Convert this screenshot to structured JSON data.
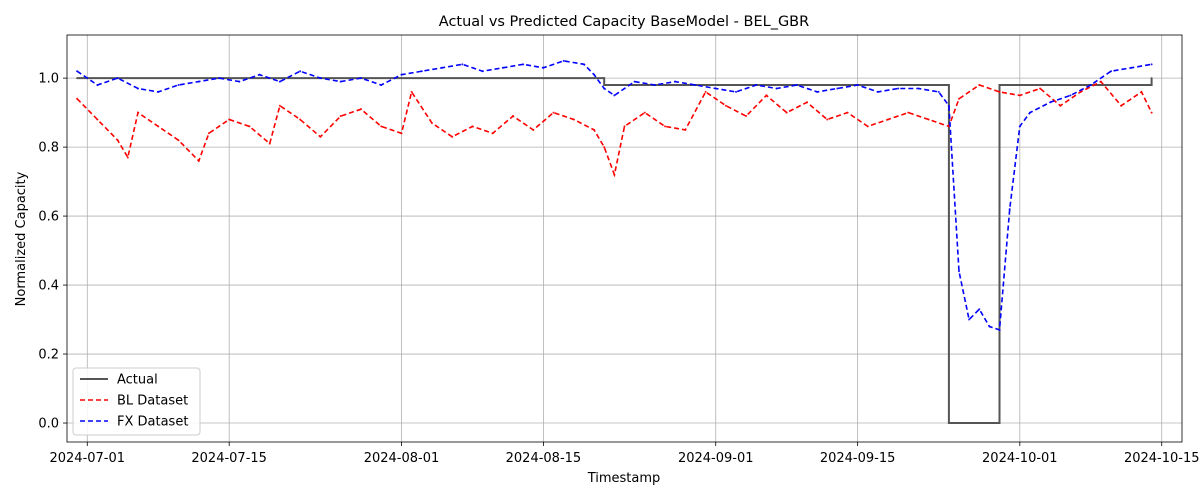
{
  "chart_data": {
    "type": "line",
    "title": "Actual vs Predicted Capacity BaseModel - BEL_GBR",
    "xlabel": "Timestamp",
    "ylabel": "Normalized Capacity",
    "x_type": "date",
    "xlim": [
      "2024-06-29",
      "2024-10-17"
    ],
    "ylim": [
      -0.055,
      1.125
    ],
    "x_ticks": [
      "2024-07-01",
      "2024-07-15",
      "2024-08-01",
      "2024-08-15",
      "2024-09-01",
      "2024-09-15",
      "2024-10-01",
      "2024-10-15"
    ],
    "y_ticks": [
      0.0,
      0.2,
      0.4,
      0.6,
      0.8,
      1.0
    ],
    "y_tick_labels": [
      "0.0",
      "0.2",
      "0.4",
      "0.6",
      "0.8",
      "1.0"
    ],
    "grid": true,
    "legend_position": "lower-left",
    "series": [
      {
        "name": "Actual",
        "color": "#555555",
        "style": "solid",
        "x": [
          "2024-06-30",
          "2024-08-20",
          "2024-08-21",
          "2024-09-24",
          "2024-09-24",
          "2024-09-29",
          "2024-09-29",
          "2024-10-14"
        ],
        "y": [
          1.0,
          1.0,
          0.98,
          0.98,
          0.0,
          0.0,
          0.98,
          1.0
        ]
      },
      {
        "name": "BL Dataset",
        "color": "#ff0000",
        "style": "dashed",
        "x": [
          "2024-06-30",
          "2024-07-02",
          "2024-07-04",
          "2024-07-05",
          "2024-07-06",
          "2024-07-08",
          "2024-07-10",
          "2024-07-12",
          "2024-07-13",
          "2024-07-15",
          "2024-07-17",
          "2024-07-19",
          "2024-07-20",
          "2024-07-22",
          "2024-07-24",
          "2024-07-26",
          "2024-07-28",
          "2024-07-30",
          "2024-08-01",
          "2024-08-02",
          "2024-08-04",
          "2024-08-06",
          "2024-08-08",
          "2024-08-10",
          "2024-08-12",
          "2024-08-14",
          "2024-08-16",
          "2024-08-18",
          "2024-08-20",
          "2024-08-21",
          "2024-08-22",
          "2024-08-23",
          "2024-08-25",
          "2024-08-27",
          "2024-08-29",
          "2024-08-31",
          "2024-09-02",
          "2024-09-04",
          "2024-09-06",
          "2024-09-08",
          "2024-09-10",
          "2024-09-12",
          "2024-09-14",
          "2024-09-16",
          "2024-09-18",
          "2024-09-20",
          "2024-09-22",
          "2024-09-24",
          "2024-09-25",
          "2024-09-27",
          "2024-09-29",
          "2024-10-01",
          "2024-10-03",
          "2024-10-05",
          "2024-10-07",
          "2024-10-09",
          "2024-10-11",
          "2024-10-13",
          "2024-10-14"
        ],
        "y": [
          0.94,
          0.88,
          0.82,
          0.77,
          0.9,
          0.86,
          0.82,
          0.76,
          0.84,
          0.88,
          0.86,
          0.81,
          0.92,
          0.88,
          0.83,
          0.89,
          0.91,
          0.86,
          0.84,
          0.96,
          0.87,
          0.83,
          0.86,
          0.84,
          0.89,
          0.85,
          0.9,
          0.88,
          0.85,
          0.8,
          0.72,
          0.86,
          0.9,
          0.86,
          0.85,
          0.96,
          0.92,
          0.89,
          0.95,
          0.9,
          0.93,
          0.88,
          0.9,
          0.86,
          0.88,
          0.9,
          0.88,
          0.86,
          0.94,
          0.98,
          0.96,
          0.95,
          0.97,
          0.92,
          0.96,
          0.99,
          0.92,
          0.96,
          0.9
        ]
      },
      {
        "name": "FX Dataset",
        "color": "#0000ff",
        "style": "dashed",
        "x": [
          "2024-06-30",
          "2024-07-02",
          "2024-07-04",
          "2024-07-06",
          "2024-07-08",
          "2024-07-10",
          "2024-07-12",
          "2024-07-14",
          "2024-07-16",
          "2024-07-18",
          "2024-07-20",
          "2024-07-22",
          "2024-07-24",
          "2024-07-26",
          "2024-07-28",
          "2024-07-30",
          "2024-08-01",
          "2024-08-03",
          "2024-08-05",
          "2024-08-07",
          "2024-08-09",
          "2024-08-11",
          "2024-08-13",
          "2024-08-15",
          "2024-08-17",
          "2024-08-19",
          "2024-08-20",
          "2024-08-21",
          "2024-08-22",
          "2024-08-24",
          "2024-08-26",
          "2024-08-28",
          "2024-08-30",
          "2024-09-01",
          "2024-09-03",
          "2024-09-05",
          "2024-09-07",
          "2024-09-09",
          "2024-09-11",
          "2024-09-13",
          "2024-09-15",
          "2024-09-17",
          "2024-09-19",
          "2024-09-21",
          "2024-09-23",
          "2024-09-24",
          "2024-09-25",
          "2024-09-26",
          "2024-09-27",
          "2024-09-28",
          "2024-09-29",
          "2024-09-30",
          "2024-10-01",
          "2024-10-02",
          "2024-10-04",
          "2024-10-06",
          "2024-10-08",
          "2024-10-10",
          "2024-10-12",
          "2024-10-14"
        ],
        "y": [
          1.02,
          0.98,
          1.0,
          0.97,
          0.96,
          0.98,
          0.99,
          1.0,
          0.99,
          1.01,
          0.99,
          1.02,
          1.0,
          0.99,
          1.0,
          0.98,
          1.01,
          1.02,
          1.03,
          1.04,
          1.02,
          1.03,
          1.04,
          1.03,
          1.05,
          1.04,
          1.01,
          0.97,
          0.95,
          0.99,
          0.98,
          0.99,
          0.98,
          0.97,
          0.96,
          0.98,
          0.97,
          0.98,
          0.96,
          0.97,
          0.98,
          0.96,
          0.97,
          0.97,
          0.96,
          0.92,
          0.44,
          0.3,
          0.33,
          0.28,
          0.27,
          0.62,
          0.86,
          0.9,
          0.93,
          0.95,
          0.98,
          1.02,
          1.03,
          1.04
        ]
      }
    ]
  }
}
